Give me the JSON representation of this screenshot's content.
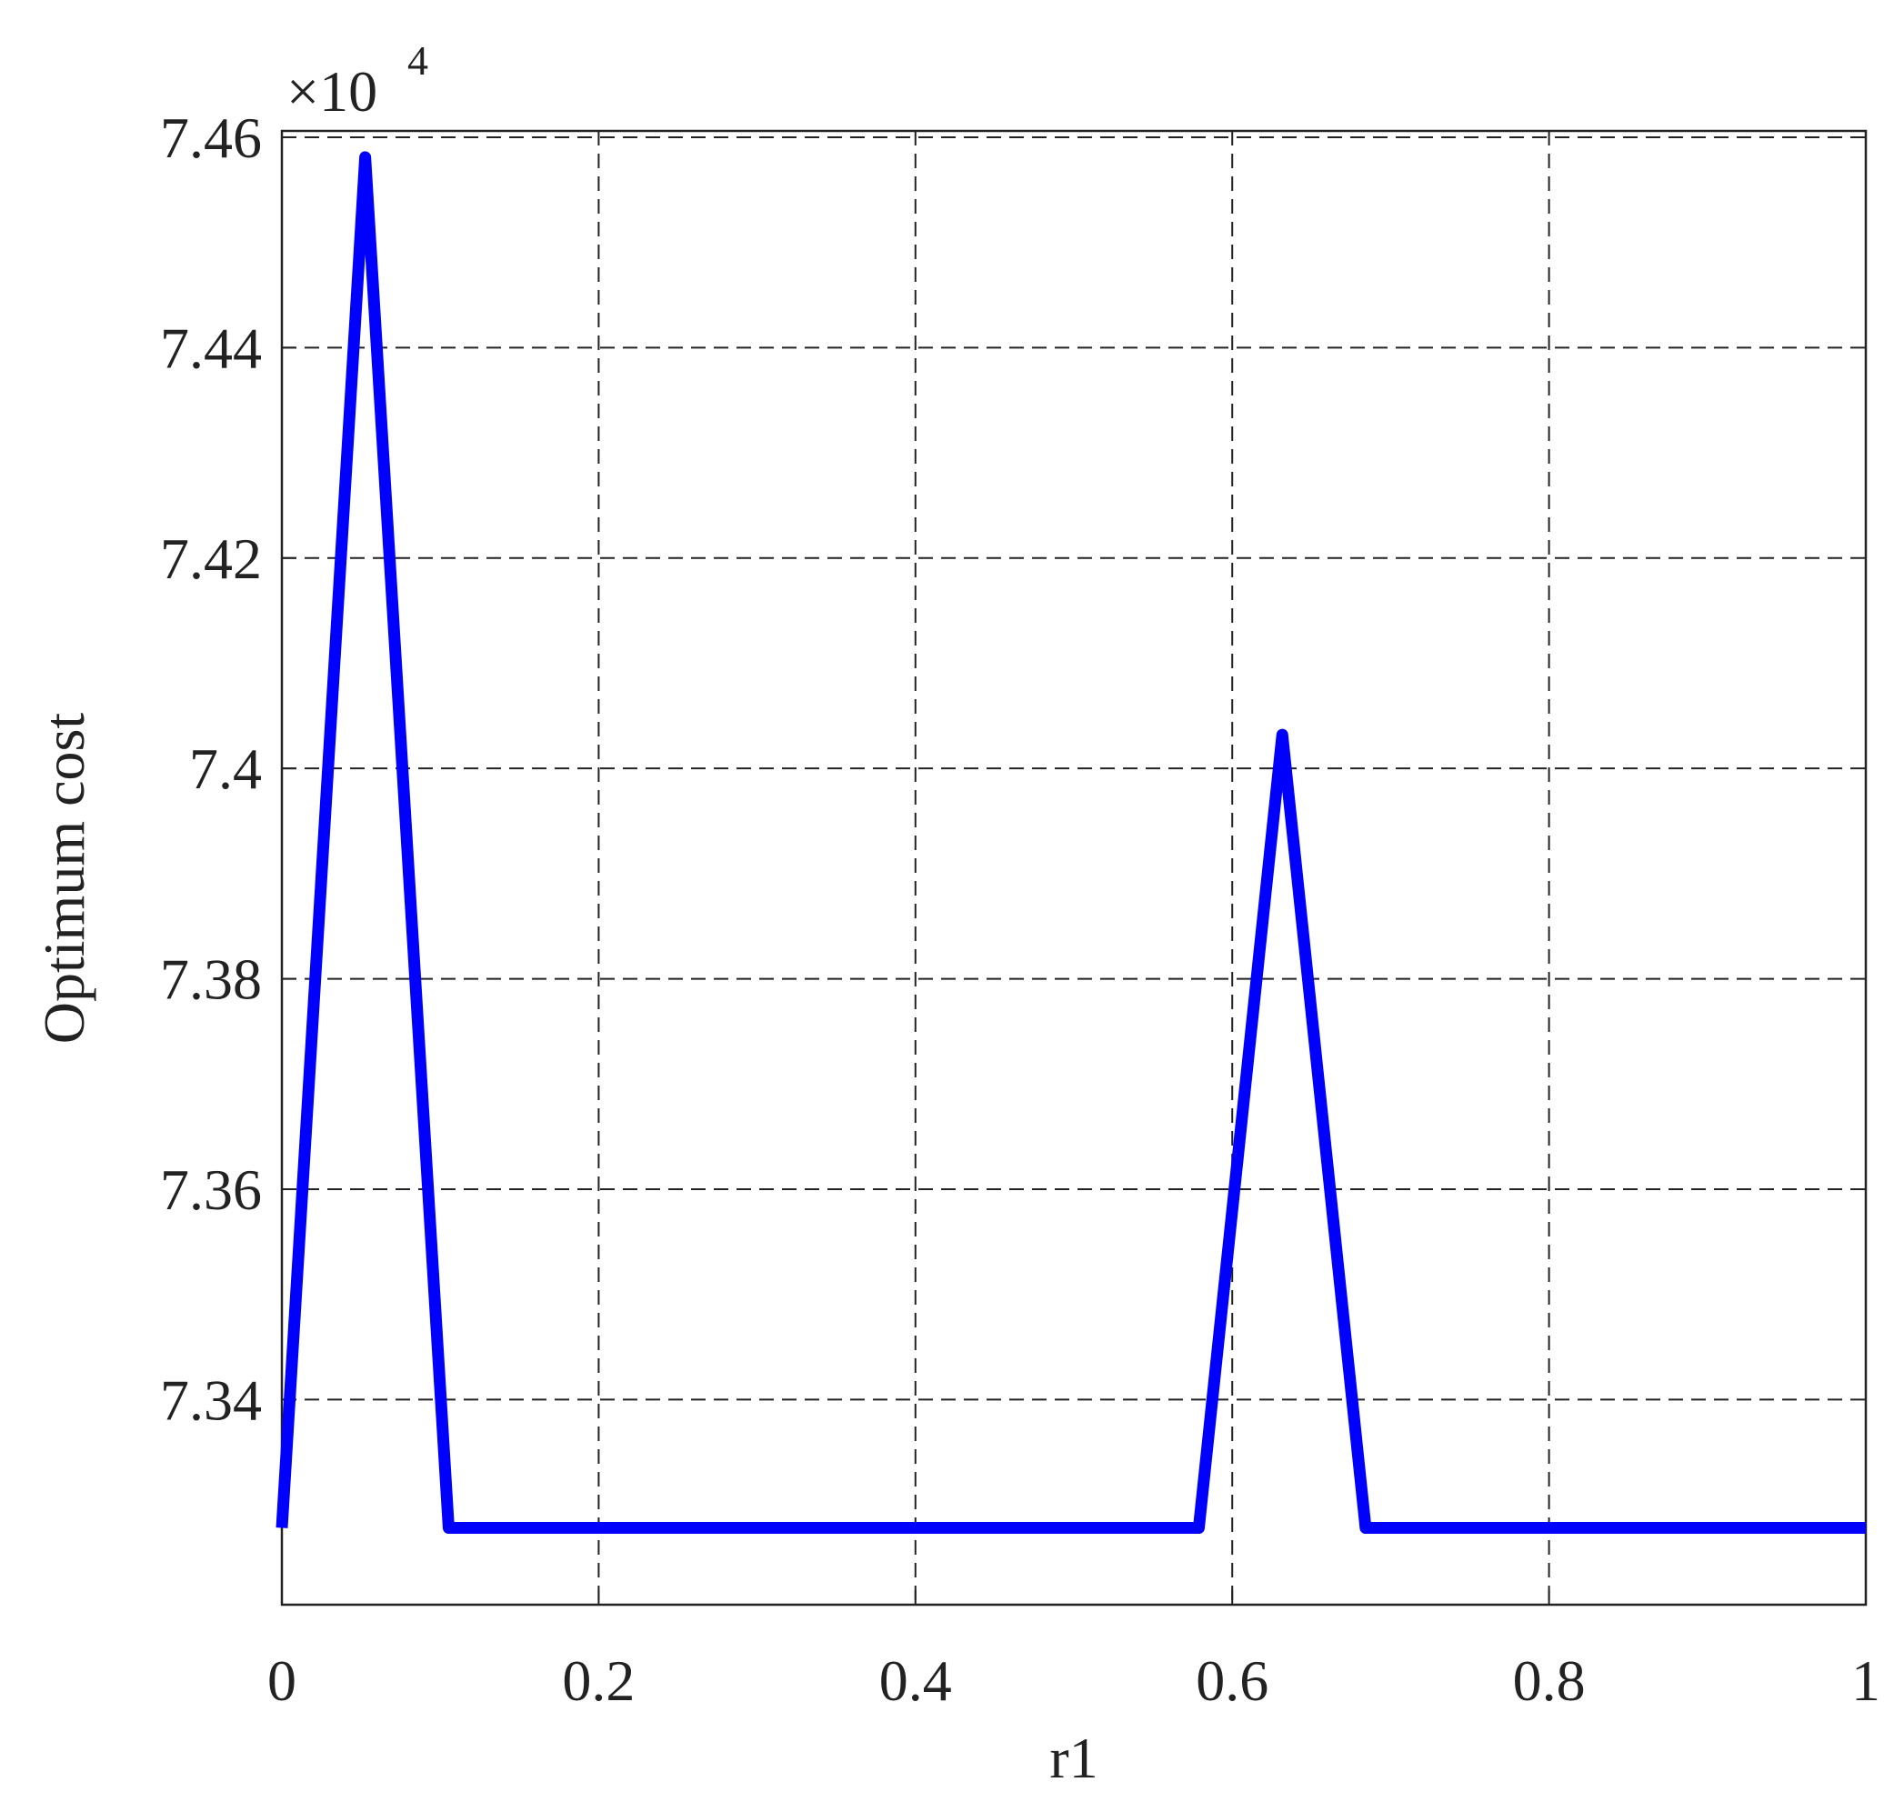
{
  "chart_data": {
    "type": "line",
    "x_label": "r1",
    "y_label": "Optimum cost",
    "y_multiplier": "×10",
    "y_multiplier_exponent": 4,
    "x": [
      0,
      0.0526,
      0.1053,
      0.5789,
      0.6316,
      0.6842,
      1
    ],
    "series": [
      {
        "color": "#0000ff",
        "values": [
          7.3278,
          7.4581,
          7.3278,
          7.3278,
          7.4032,
          7.3278,
          7.3278
        ]
      }
    ],
    "xlim": [
      0,
      1
    ],
    "xticks": [
      0,
      0.2,
      0.4,
      0.6,
      0.8,
      1
    ],
    "ylim": [
      7.3205,
      7.4606
    ],
    "yticks": [
      7.34,
      7.36,
      7.38,
      7.4,
      7.42,
      7.44,
      7.46
    ],
    "grid": true
  }
}
